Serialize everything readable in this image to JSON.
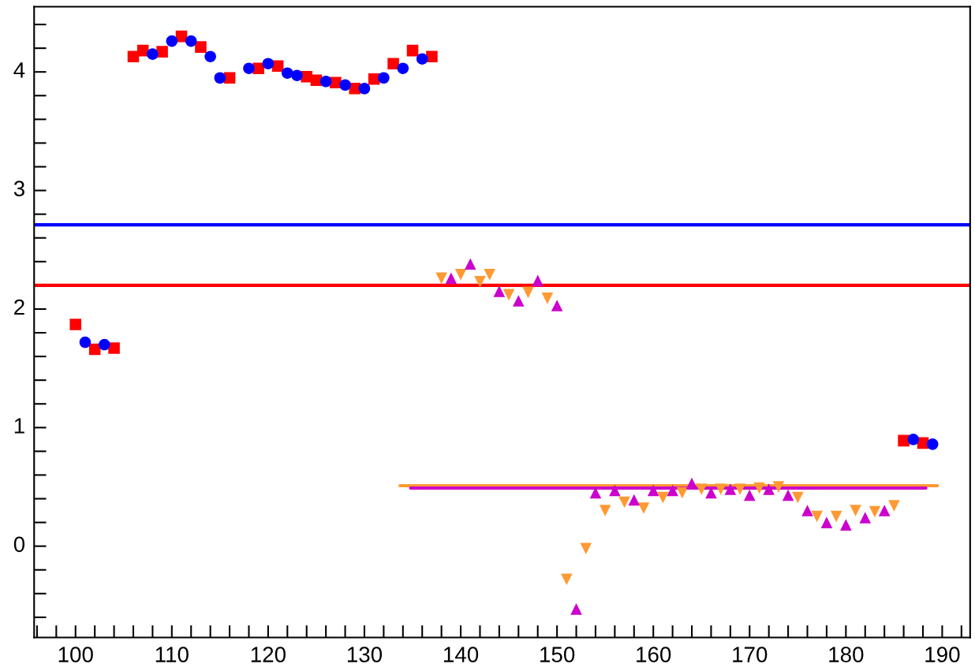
{
  "chart_data": {
    "type": "scatter",
    "xlim": [
      95.7,
      192.9
    ],
    "ylim": [
      -0.77,
      4.55
    ],
    "xticks": [
      {
        "value": 96,
        "label": null
      },
      {
        "value": 98,
        "label": null
      },
      100,
      {
        "value": 102,
        "label": null
      },
      {
        "value": 104,
        "label": null
      },
      {
        "value": 106,
        "label": null
      },
      {
        "value": 108,
        "label": null
      },
      110,
      {
        "value": 112,
        "label": null
      },
      {
        "value": 114,
        "label": null
      },
      {
        "value": 116,
        "label": null
      },
      {
        "value": 118,
        "label": null
      },
      120,
      {
        "value": 122,
        "label": null
      },
      {
        "value": 124,
        "label": null
      },
      {
        "value": 126,
        "label": null
      },
      {
        "value": 128,
        "label": null
      },
      130,
      {
        "value": 132,
        "label": null
      },
      {
        "value": 134,
        "label": null
      },
      {
        "value": 136,
        "label": null
      },
      {
        "value": 138,
        "label": null
      },
      140,
      {
        "value": 142,
        "label": null
      },
      {
        "value": 144,
        "label": null
      },
      {
        "value": 146,
        "label": null
      },
      {
        "value": 148,
        "label": null
      },
      150,
      {
        "value": 152,
        "label": null
      },
      {
        "value": 154,
        "label": null
      },
      {
        "value": 156,
        "label": null
      },
      {
        "value": 158,
        "label": null
      },
      160,
      {
        "value": 162,
        "label": null
      },
      {
        "value": 164,
        "label": null
      },
      {
        "value": 166,
        "label": null
      },
      {
        "value": 168,
        "label": null
      },
      170,
      {
        "value": 172,
        "label": null
      },
      {
        "value": 174,
        "label": null
      },
      {
        "value": 176,
        "label": null
      },
      {
        "value": 178,
        "label": null
      },
      180,
      {
        "value": 182,
        "label": null
      },
      {
        "value": 184,
        "label": null
      },
      {
        "value": 186,
        "label": null
      },
      {
        "value": 188,
        "label": null
      },
      190,
      {
        "value": 192,
        "label": null
      }
    ],
    "yticks": [
      {
        "value": -0.6,
        "label": null
      },
      {
        "value": -0.4,
        "label": null
      },
      {
        "value": -0.2,
        "label": null
      },
      0,
      {
        "value": 0.2,
        "label": null
      },
      {
        "value": 0.4,
        "label": null
      },
      {
        "value": 0.6,
        "label": null
      },
      {
        "value": 0.8,
        "label": null
      },
      1,
      {
        "value": 1.2,
        "label": null
      },
      {
        "value": 1.4,
        "label": null
      },
      {
        "value": 1.6,
        "label": null
      },
      {
        "value": 1.8,
        "label": null
      },
      2,
      {
        "value": 2.2,
        "label": null
      },
      {
        "value": 2.4,
        "label": null
      },
      {
        "value": 2.6,
        "label": null
      },
      {
        "value": 2.8,
        "label": null
      },
      3,
      {
        "value": 3.2,
        "label": null
      },
      {
        "value": 3.4,
        "label": null
      },
      {
        "value": 3.6,
        "label": null
      },
      {
        "value": 3.8,
        "label": null
      },
      4,
      {
        "value": 4.2,
        "label": null
      },
      {
        "value": 4.4,
        "label": null
      }
    ],
    "grid": false,
    "series": [
      {
        "color": "#ff0000",
        "marker": "square",
        "x": [
          100,
          102,
          104,
          106,
          107,
          109,
          111,
          113,
          116,
          119,
          121,
          124,
          125,
          127,
          129,
          131,
          133,
          135,
          137,
          186,
          188
        ],
        "values": [
          1.87,
          1.66,
          1.67,
          4.13,
          4.18,
          4.17,
          4.3,
          4.21,
          3.95,
          4.03,
          4.05,
          3.96,
          3.93,
          3.91,
          3.86,
          3.94,
          4.07,
          4.18,
          4.13,
          0.89,
          0.87
        ]
      },
      {
        "color": "#0000ff",
        "marker": "circle",
        "x": [
          101,
          103,
          108,
          110,
          112,
          114,
          115,
          118,
          120,
          122,
          123,
          126,
          128,
          130,
          132,
          134,
          136,
          187,
          189
        ],
        "values": [
          1.72,
          1.7,
          4.15,
          4.26,
          4.26,
          4.13,
          3.95,
          4.03,
          4.07,
          3.99,
          3.97,
          3.92,
          3.89,
          3.86,
          3.95,
          4.03,
          4.11,
          0.9,
          0.86
        ]
      },
      {
        "color": "#ff9933",
        "marker": "triangle_down",
        "x": [
          138,
          140,
          142,
          143,
          145,
          147,
          149,
          151,
          153,
          155,
          157,
          159,
          161,
          163,
          165,
          167,
          169,
          171,
          173,
          175,
          177,
          179,
          181,
          183,
          185
        ],
        "values": [
          2.26,
          2.29,
          2.23,
          2.29,
          2.12,
          2.14,
          2.09,
          -0.28,
          -0.02,
          0.3,
          0.37,
          0.32,
          0.41,
          0.45,
          0.48,
          0.48,
          0.48,
          0.49,
          0.5,
          0.41,
          0.25,
          0.25,
          0.3,
          0.29,
          0.34
        ]
      },
      {
        "color": "#cc00cc",
        "marker": "triangle",
        "x": [
          139,
          141,
          144,
          146,
          148,
          150,
          152,
          154,
          156,
          158,
          160,
          162,
          164,
          166,
          168,
          170,
          172,
          174,
          176,
          178,
          180,
          182,
          184
        ],
        "values": [
          2.26,
          2.38,
          2.15,
          2.07,
          2.24,
          2.03,
          -0.53,
          0.45,
          0.47,
          0.39,
          0.47,
          0.47,
          0.53,
          0.45,
          0.48,
          0.43,
          0.48,
          0.43,
          0.3,
          0.2,
          0.18,
          0.24,
          0.3
        ]
      },
      {
        "type": "line",
        "color": "#ff9933",
        "marker": "none",
        "x": [
          133.7,
          189.5
        ],
        "values": [
          0.51,
          0.51
        ]
      },
      {
        "type": "line",
        "color": "#cc00cc",
        "marker": "none",
        "x": [
          134.8,
          188.3
        ],
        "values": [
          0.49,
          0.49
        ]
      }
    ],
    "ref_lines": [
      {
        "axis": "y",
        "value": 2.71,
        "color": "#0000ff"
      },
      {
        "axis": "y",
        "value": 2.2,
        "color": "#ff0000"
      }
    ]
  }
}
